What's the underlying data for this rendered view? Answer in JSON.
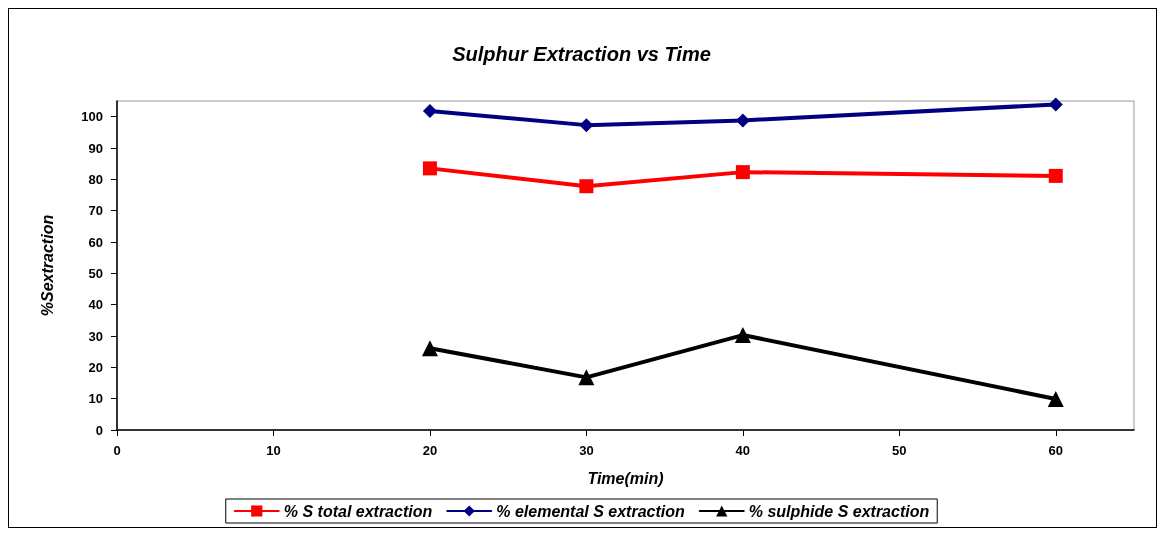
{
  "chart_data": {
    "type": "line",
    "title": "Sulphur Extraction vs Time",
    "xlabel": "Time(min)",
    "ylabel": "%Sextraction",
    "x": [
      20,
      30,
      40,
      60
    ],
    "series": [
      {
        "name": "% S total extraction",
        "color": "#ff0000",
        "marker": "square",
        "values": [
          83.5,
          77.8,
          82.3,
          81.1
        ]
      },
      {
        "name": "% elemental S extraction",
        "color": "#000080",
        "marker": "diamond",
        "values": [
          101.8,
          97.3,
          98.8,
          103.9
        ]
      },
      {
        "name": "% sulphide S extraction",
        "color": "#000000",
        "marker": "triangle",
        "values": [
          26.1,
          16.8,
          30.3,
          9.9
        ]
      }
    ],
    "xlim": [
      0,
      65
    ],
    "xticks": [
      0,
      10,
      20,
      30,
      40,
      50,
      60
    ],
    "ylim": [
      0,
      105
    ],
    "yticks": [
      0,
      10,
      20,
      30,
      40,
      50,
      60,
      70,
      80,
      90,
      100
    ],
    "grid": false,
    "legend": "bottom",
    "line_style": "solid"
  }
}
